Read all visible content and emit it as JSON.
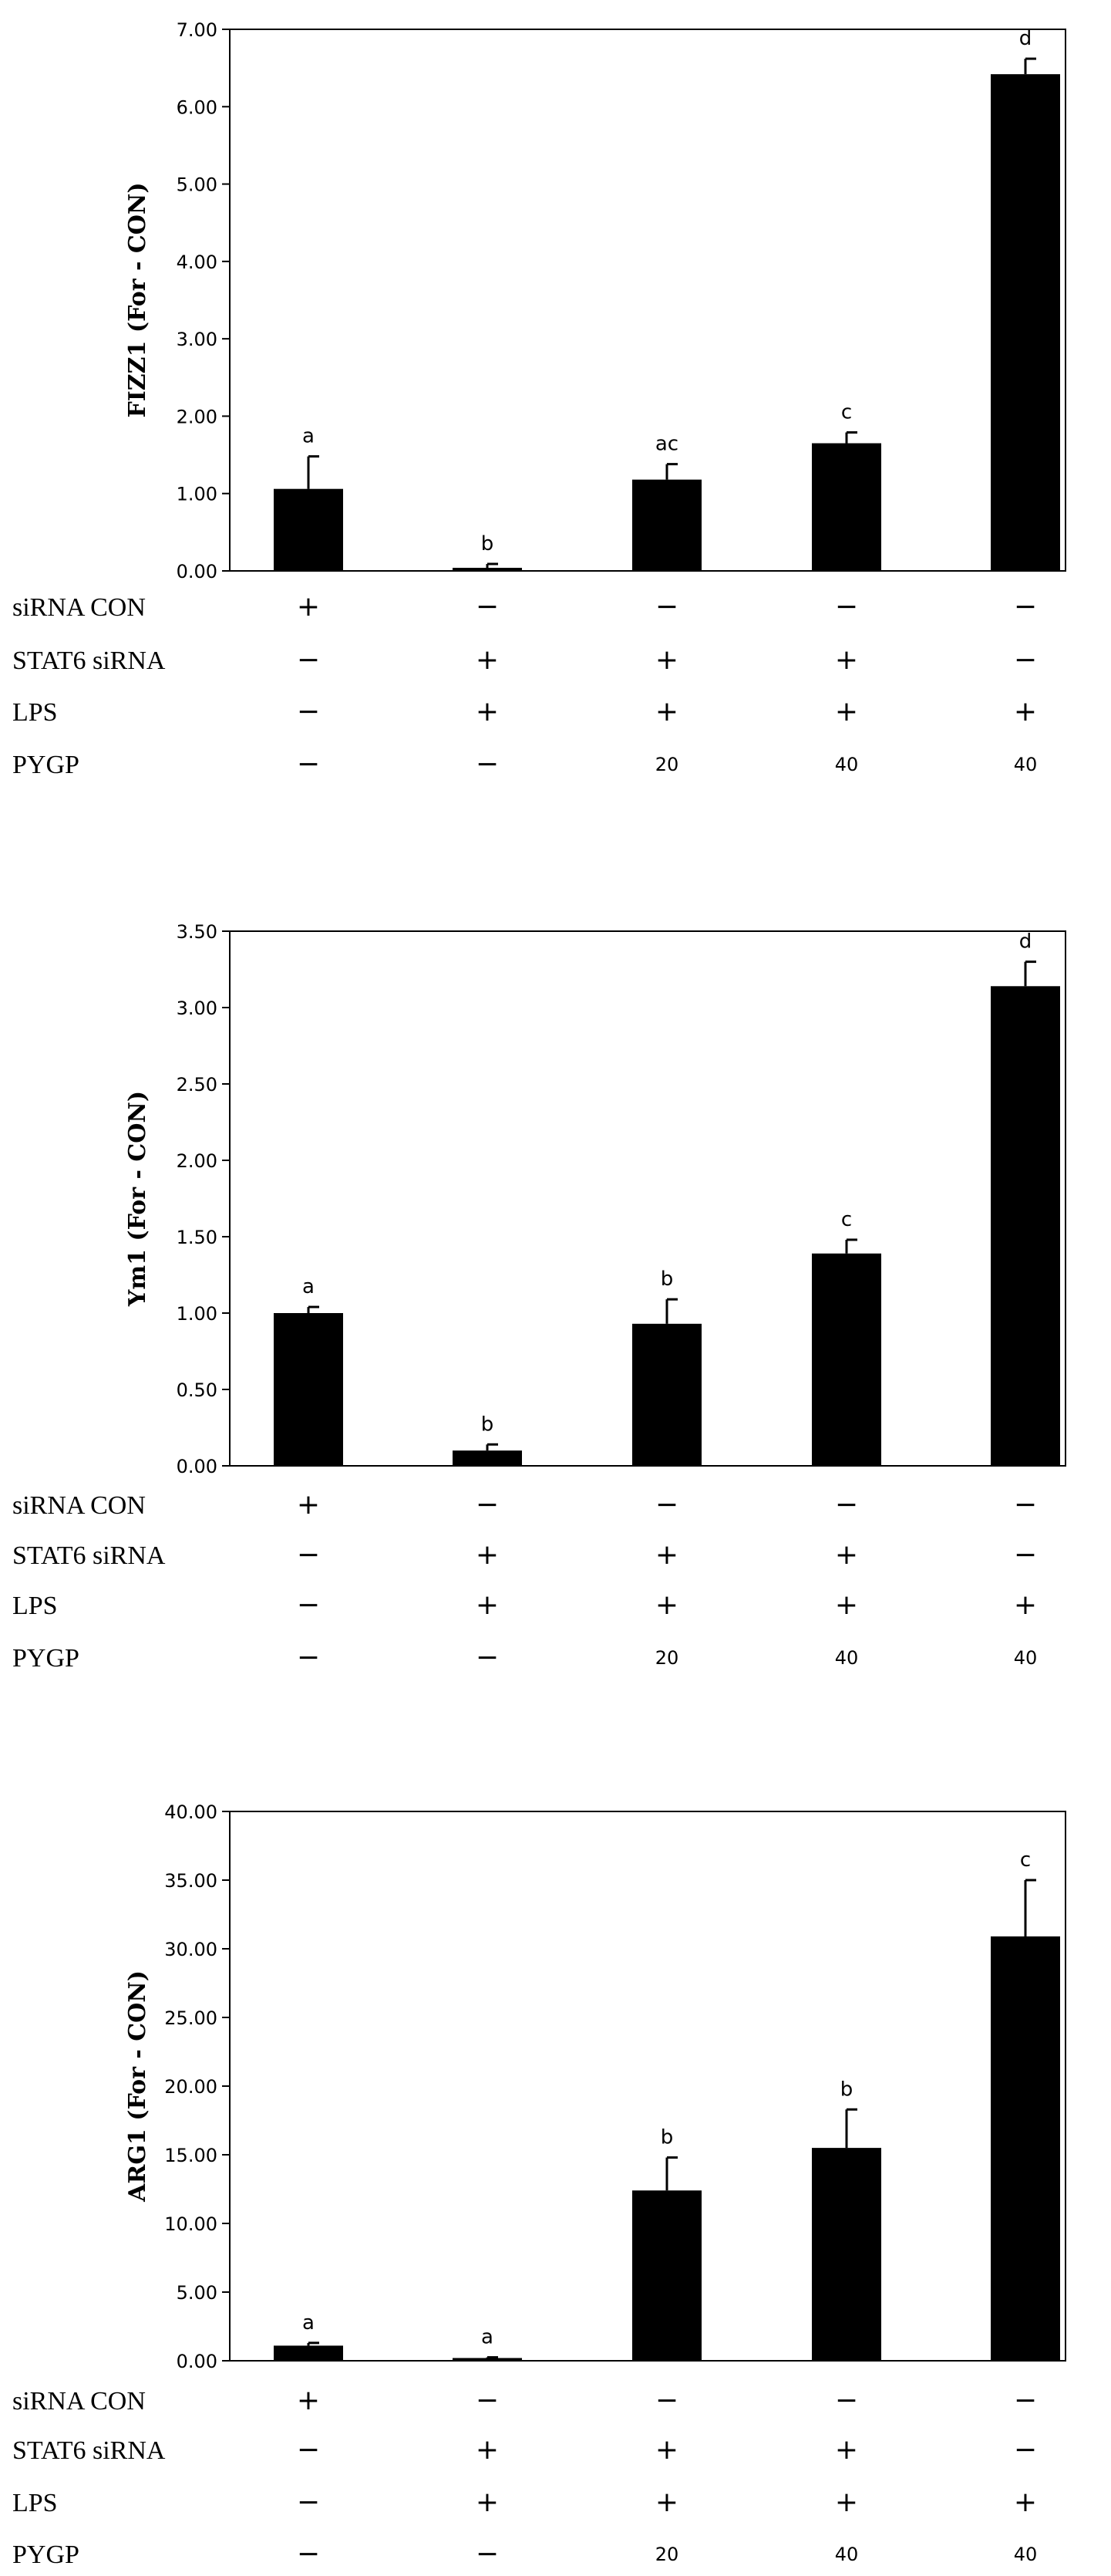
{
  "chart_data": [
    {
      "type": "bar",
      "ylabel": "FIZZ1 (For - CON)",
      "ylim": [
        0,
        7
      ],
      "yticks": [
        "0.00",
        "1.00",
        "2.00",
        "3.00",
        "4.00",
        "5.00",
        "6.00",
        "7.00"
      ],
      "values": [
        1.06,
        0.04,
        1.18,
        1.65,
        6.42
      ],
      "errors": [
        0.42,
        0.05,
        0.2,
        0.14,
        0.2
      ],
      "sig_labels": [
        "a",
        "b",
        "ac",
        "c",
        "d"
      ],
      "bar_color": "#000000",
      "grid": false,
      "rows": [
        {
          "label": "siRNA CON",
          "cells": [
            "+",
            "−",
            "−",
            "−",
            "−"
          ]
        },
        {
          "label": "STAT6 siRNA",
          "cells": [
            "−",
            "+",
            "+",
            "+",
            "−"
          ]
        },
        {
          "label": "LPS",
          "cells": [
            "−",
            "+",
            "+",
            "+",
            "+"
          ]
        },
        {
          "label": "PYGP",
          "cells": [
            "−",
            "−",
            "20",
            "40",
            "40"
          ]
        }
      ]
    },
    {
      "type": "bar",
      "ylabel": "Ym1 (For - CON)",
      "ylim": [
        0,
        3.5
      ],
      "yticks": [
        "0.00",
        "0.50",
        "1.00",
        "1.50",
        "2.00",
        "2.50",
        "3.00",
        "3.50"
      ],
      "values": [
        1.0,
        0.1,
        0.93,
        1.39,
        3.14
      ],
      "errors": [
        0.04,
        0.04,
        0.16,
        0.09,
        0.16
      ],
      "sig_labels": [
        "a",
        "b",
        "b",
        "c",
        "d"
      ],
      "bar_color": "#000000",
      "grid": false,
      "rows": [
        {
          "label": "siRNA CON",
          "cells": [
            "+",
            "−",
            "−",
            "−",
            "−"
          ]
        },
        {
          "label": "STAT6 siRNA",
          "cells": [
            "−",
            "+",
            "+",
            "+",
            "−"
          ]
        },
        {
          "label": "LPS",
          "cells": [
            "−",
            "+",
            "+",
            "+",
            "+"
          ]
        },
        {
          "label": "PYGP",
          "cells": [
            "−",
            "−",
            "20",
            "40",
            "40"
          ]
        }
      ]
    },
    {
      "type": "bar",
      "ylabel": "ARG1 (For - CON)",
      "ylim": [
        0,
        40
      ],
      "yticks": [
        "0.00",
        "5.00",
        "10.00",
        "15.00",
        "20.00",
        "25.00",
        "30.00",
        "35.00",
        "40.00"
      ],
      "values": [
        1.1,
        0.2,
        12.4,
        15.5,
        30.9
      ],
      "errors": [
        0.2,
        0.05,
        2.4,
        2.8,
        4.1
      ],
      "sig_labels": [
        "a",
        "a",
        "b",
        "b",
        "c"
      ],
      "bar_color": "#000000",
      "grid": false,
      "rows": [
        {
          "label": "siRNA CON",
          "cells": [
            "+",
            "−",
            "−",
            "−",
            "−"
          ]
        },
        {
          "label": "STAT6 siRNA",
          "cells": [
            "−",
            "+",
            "+",
            "+",
            "−"
          ]
        },
        {
          "label": "LPS",
          "cells": [
            "−",
            "+",
            "+",
            "+",
            "+"
          ]
        },
        {
          "label": "PYGP",
          "cells": [
            "−",
            "−",
            "20",
            "40",
            "40"
          ]
        }
      ]
    }
  ]
}
